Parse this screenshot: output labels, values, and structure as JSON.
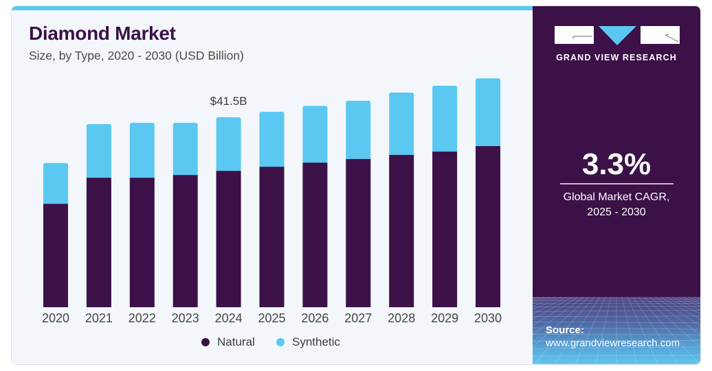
{
  "header": {
    "title": "Diamond Market",
    "subtitle": "Size, by Type, 2020 - 2030 (USD Billion)"
  },
  "colors": {
    "natural": "#3b1148",
    "synthetic": "#5bc8f2",
    "accent_strip": "#5bc8f2",
    "side_panel": "#3b1148"
  },
  "chart_data": {
    "type": "bar",
    "stacked": true,
    "title": "Diamond Market",
    "subtitle": "Size, by Type, 2020 - 2030 (USD Billion)",
    "xlabel": "",
    "ylabel": "USD Billion",
    "categories": [
      "2020",
      "2021",
      "2022",
      "2023",
      "2024",
      "2025",
      "2026",
      "2027",
      "2028",
      "2029",
      "2030"
    ],
    "series": [
      {
        "name": "Natural",
        "color": "#3b1148",
        "values": [
          22.6,
          28.3,
          28.3,
          28.9,
          29.8,
          30.7,
          31.6,
          32.4,
          33.3,
          34.0,
          35.2
        ]
      },
      {
        "name": "Synthetic",
        "color": "#5bc8f2",
        "values": [
          8.9,
          11.7,
          12.0,
          11.4,
          11.7,
          12.0,
          12.4,
          12.7,
          13.6,
          14.4,
          14.8
        ]
      }
    ],
    "ylim": [
      0,
      50
    ],
    "grid": false,
    "y_axis_visible": false,
    "annotations": [
      {
        "category": "2024",
        "label": "$41.5B",
        "value": 41.5
      }
    ],
    "legend": {
      "position": "bottom-center",
      "entries": [
        "Natural",
        "Synthetic"
      ]
    }
  },
  "legend": {
    "items": [
      {
        "label": "Natural"
      },
      {
        "label": "Synthetic"
      }
    ]
  },
  "side_panel": {
    "brand_name": "GRAND VIEW RESEARCH",
    "logo_icon": "gvr-logo-icon",
    "cagr_value": "3.3%",
    "cagr_desc_line1": "Global Market CAGR,",
    "cagr_desc_line2": "2025 - 2030",
    "source_label": "Source:",
    "source_url": "www.grandviewresearch.com"
  }
}
